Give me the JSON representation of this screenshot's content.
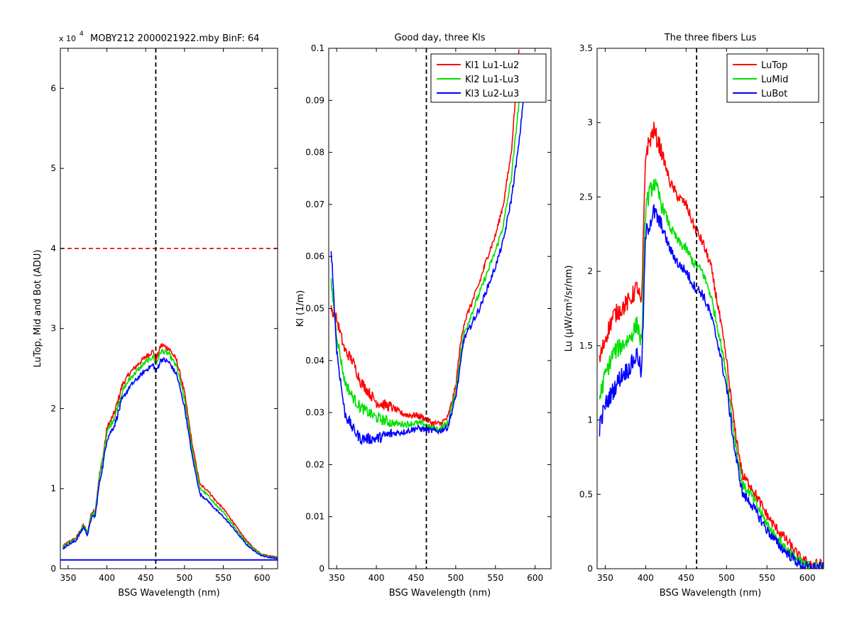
{
  "figure": {
    "background": "#ffffff"
  },
  "chart_data": [
    {
      "type": "line",
      "title": "MOBY212  2000021922.mby BinF: 64",
      "exponent_label": "x 10",
      "exponent_sup": "4",
      "xlabel": "BSG Wavelength (nm)",
      "ylabel": "LuTop, Mid and Bot (ADU)",
      "xlim": [
        340,
        620
      ],
      "ylim": [
        0,
        6.5
      ],
      "xticks": [
        350,
        400,
        450,
        500,
        550,
        600
      ],
      "yticks": [
        0,
        1,
        2,
        3,
        4,
        5,
        6
      ],
      "xtick_labels": [
        "350",
        "400",
        "450",
        "500",
        "550",
        "600"
      ],
      "ytick_labels": [
        "0",
        "1",
        "2",
        "3",
        "4",
        "5",
        "6"
      ],
      "grid": false,
      "vline": {
        "x": 463,
        "color": "#000000"
      },
      "hline": {
        "y": 4.0,
        "color": "#e00000"
      },
      "flat_line": {
        "y": 0.11,
        "color": "#0000ff"
      },
      "noise": 0.05,
      "series": [
        {
          "color": "#ff0000",
          "x": [
            343,
            350,
            360,
            370,
            375,
            380,
            385,
            390,
            395,
            400,
            410,
            420,
            430,
            440,
            450,
            460,
            463,
            470,
            480,
            490,
            500,
            510,
            520,
            530,
            540,
            550,
            560,
            570,
            580,
            590,
            600,
            610,
            620
          ],
          "values": [
            0.28,
            0.33,
            0.38,
            0.55,
            0.45,
            0.7,
            0.72,
            1.15,
            1.4,
            1.75,
            1.95,
            2.3,
            2.45,
            2.55,
            2.65,
            2.72,
            2.6,
            2.8,
            2.75,
            2.6,
            2.2,
            1.55,
            1.05,
            0.98,
            0.85,
            0.75,
            0.62,
            0.48,
            0.35,
            0.25,
            0.18,
            0.16,
            0.15
          ]
        },
        {
          "color": "#00e000",
          "x": [
            343,
            350,
            360,
            370,
            375,
            380,
            385,
            390,
            395,
            400,
            410,
            420,
            430,
            440,
            450,
            460,
            463,
            470,
            480,
            490,
            500,
            510,
            520,
            530,
            540,
            550,
            560,
            570,
            580,
            590,
            600,
            610,
            620
          ],
          "values": [
            0.27,
            0.32,
            0.37,
            0.54,
            0.44,
            0.68,
            0.7,
            1.12,
            1.38,
            1.7,
            1.9,
            2.22,
            2.38,
            2.48,
            2.58,
            2.65,
            2.55,
            2.72,
            2.68,
            2.52,
            2.12,
            1.48,
            1.0,
            0.92,
            0.8,
            0.7,
            0.58,
            0.45,
            0.33,
            0.24,
            0.17,
            0.15,
            0.14
          ]
        },
        {
          "color": "#0000ff",
          "x": [
            343,
            350,
            360,
            370,
            375,
            380,
            385,
            390,
            395,
            400,
            410,
            420,
            430,
            440,
            450,
            460,
            463,
            470,
            480,
            490,
            500,
            510,
            520,
            530,
            540,
            550,
            560,
            570,
            580,
            590,
            600,
            610,
            620
          ],
          "values": [
            0.25,
            0.3,
            0.35,
            0.52,
            0.42,
            0.64,
            0.66,
            1.05,
            1.3,
            1.62,
            1.8,
            2.12,
            2.28,
            2.38,
            2.48,
            2.55,
            2.45,
            2.62,
            2.58,
            2.42,
            2.02,
            1.4,
            0.93,
            0.85,
            0.74,
            0.65,
            0.54,
            0.42,
            0.3,
            0.22,
            0.16,
            0.14,
            0.13
          ]
        }
      ]
    },
    {
      "type": "line",
      "title": "Good day, three Kls",
      "xlabel": "BSG Wavelength (nm)",
      "ylabel": "Kl (1/m)",
      "xlim": [
        340,
        620
      ],
      "ylim": [
        0,
        0.1
      ],
      "xticks": [
        350,
        400,
        450,
        500,
        550,
        600
      ],
      "yticks": [
        0,
        0.01,
        0.02,
        0.03,
        0.04,
        0.05,
        0.06,
        0.07,
        0.08,
        0.09,
        0.1
      ],
      "xtick_labels": [
        "350",
        "400",
        "450",
        "500",
        "550",
        "600"
      ],
      "ytick_labels": [
        "0",
        "0.01",
        "0.02",
        "0.03",
        "0.04",
        "0.05",
        "0.06",
        "0.07",
        "0.08",
        "0.09",
        "0.1"
      ],
      "grid": false,
      "vline": {
        "x": 463,
        "color": "#000000"
      },
      "legend": {
        "position": "top-right"
      },
      "noise": 0.0012,
      "series": [
        {
          "name": "Kl1 Lu1-Lu2",
          "color": "#ff0000",
          "x": [
            343,
            350,
            360,
            370,
            380,
            390,
            400,
            410,
            420,
            430,
            440,
            450,
            460,
            470,
            480,
            490,
            500,
            505,
            510,
            520,
            530,
            540,
            550,
            560,
            570,
            575,
            580
          ],
          "values": [
            0.05,
            0.048,
            0.042,
            0.04,
            0.036,
            0.034,
            0.032,
            0.0315,
            0.031,
            0.03,
            0.0295,
            0.0295,
            0.029,
            0.028,
            0.0278,
            0.029,
            0.035,
            0.042,
            0.047,
            0.051,
            0.055,
            0.06,
            0.064,
            0.07,
            0.08,
            0.09,
            0.1
          ]
        },
        {
          "name": "Kl2 Lu1-Lu3",
          "color": "#00e000",
          "x": [
            343,
            350,
            360,
            370,
            380,
            390,
            400,
            410,
            420,
            430,
            440,
            450,
            460,
            470,
            480,
            490,
            500,
            505,
            510,
            520,
            530,
            540,
            550,
            560,
            570,
            580,
            585
          ],
          "values": [
            0.055,
            0.045,
            0.036,
            0.033,
            0.031,
            0.03,
            0.029,
            0.0285,
            0.028,
            0.0278,
            0.0278,
            0.028,
            0.0278,
            0.027,
            0.0268,
            0.028,
            0.034,
            0.04,
            0.045,
            0.049,
            0.053,
            0.057,
            0.061,
            0.066,
            0.075,
            0.09,
            0.1
          ]
        },
        {
          "name": "Kl3 Lu2-Lu3",
          "color": "#0000ff",
          "x": [
            343,
            350,
            360,
            370,
            380,
            390,
            400,
            410,
            420,
            430,
            440,
            450,
            460,
            470,
            480,
            490,
            500,
            505,
            510,
            520,
            530,
            540,
            550,
            560,
            570,
            580,
            585,
            590
          ],
          "values": [
            0.062,
            0.042,
            0.03,
            0.027,
            0.025,
            0.025,
            0.025,
            0.0255,
            0.026,
            0.0262,
            0.0265,
            0.027,
            0.0268,
            0.0265,
            0.0265,
            0.0272,
            0.033,
            0.038,
            0.044,
            0.047,
            0.05,
            0.054,
            0.058,
            0.063,
            0.071,
            0.082,
            0.09,
            0.1
          ]
        }
      ]
    },
    {
      "type": "line",
      "title": "The three fibers Lus",
      "xlabel": "BSG Wavelength (nm)",
      "ylabel": "Lu (μW/cm²/sr/nm)",
      "xlim": [
        340,
        620
      ],
      "ylim": [
        0,
        3.5
      ],
      "xticks": [
        350,
        400,
        450,
        500,
        550,
        600
      ],
      "yticks": [
        0,
        0.5,
        1,
        1.5,
        2,
        2.5,
        3,
        3.5
      ],
      "xtick_labels": [
        "350",
        "400",
        "450",
        "500",
        "550",
        "600"
      ],
      "ytick_labels": [
        "0",
        "0.5",
        "1",
        "1.5",
        "2",
        "2.5",
        "3",
        "3.5"
      ],
      "grid": false,
      "vline": {
        "x": 463,
        "color": "#000000"
      },
      "legend": {
        "position": "top-right"
      },
      "noise": 0.07,
      "series": [
        {
          "name": "LuTop",
          "color": "#ff0000",
          "x": [
            343,
            350,
            360,
            370,
            380,
            390,
            395,
            400,
            410,
            420,
            430,
            440,
            450,
            460,
            470,
            480,
            490,
            500,
            510,
            520,
            530,
            540,
            550,
            560,
            570,
            580,
            590,
            600,
            610,
            620
          ],
          "values": [
            1.4,
            1.55,
            1.7,
            1.75,
            1.8,
            1.9,
            1.75,
            2.8,
            2.95,
            2.8,
            2.6,
            2.5,
            2.45,
            2.3,
            2.2,
            2.05,
            1.75,
            1.4,
            0.95,
            0.62,
            0.56,
            0.46,
            0.36,
            0.28,
            0.22,
            0.15,
            0.08,
            0.04,
            0.03,
            0.03
          ]
        },
        {
          "name": "LuMid",
          "color": "#00e000",
          "x": [
            343,
            350,
            360,
            370,
            380,
            390,
            395,
            400,
            410,
            420,
            430,
            440,
            450,
            460,
            470,
            480,
            490,
            500,
            510,
            520,
            530,
            540,
            550,
            560,
            570,
            580,
            590,
            600,
            610,
            620
          ],
          "values": [
            1.15,
            1.3,
            1.45,
            1.5,
            1.55,
            1.65,
            1.5,
            2.45,
            2.6,
            2.45,
            2.3,
            2.2,
            2.15,
            2.05,
            2.0,
            1.85,
            1.6,
            1.3,
            0.88,
            0.56,
            0.5,
            0.4,
            0.3,
            0.22,
            0.16,
            0.1,
            0.05,
            0.02,
            0.02,
            0.02
          ]
        },
        {
          "name": "LuBot",
          "color": "#0000ff",
          "x": [
            343,
            350,
            360,
            370,
            380,
            390,
            395,
            400,
            410,
            420,
            430,
            440,
            450,
            460,
            470,
            480,
            490,
            500,
            510,
            520,
            530,
            540,
            550,
            560,
            570,
            580,
            590,
            600,
            610,
            620
          ],
          "values": [
            0.95,
            1.1,
            1.2,
            1.3,
            1.35,
            1.45,
            1.3,
            2.25,
            2.4,
            2.3,
            2.15,
            2.05,
            2.0,
            1.9,
            1.85,
            1.72,
            1.5,
            1.22,
            0.8,
            0.5,
            0.44,
            0.35,
            0.26,
            0.19,
            0.13,
            0.08,
            0.03,
            0.01,
            0.01,
            0.01
          ]
        }
      ]
    }
  ]
}
